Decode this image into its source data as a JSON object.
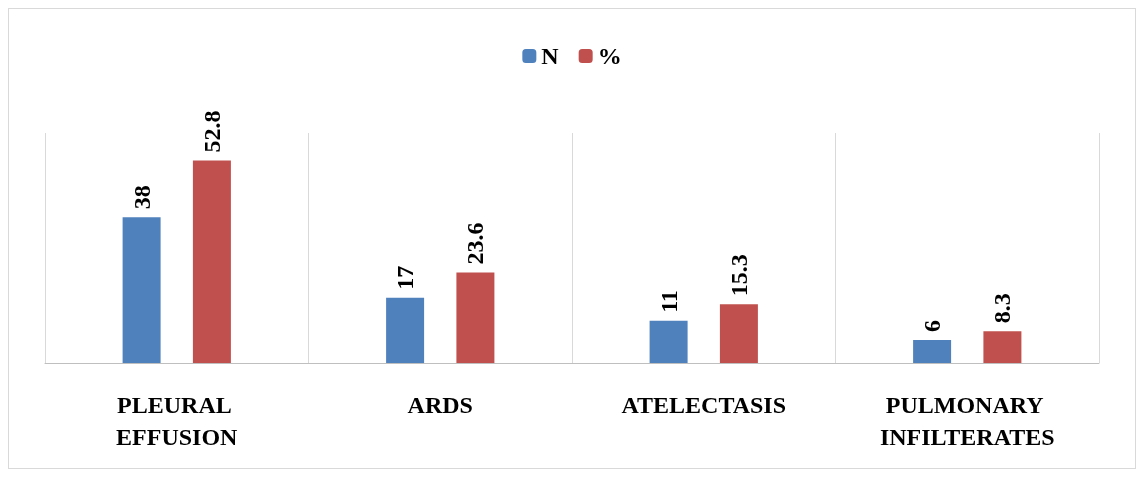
{
  "chart_data": {
    "type": "bar",
    "categories": [
      "PLEURAL EFFUSION",
      "ARDS",
      "ATELECTASIS",
      "PULMONARY INFILTERATES"
    ],
    "series": [
      {
        "name": "N",
        "color": "#4f81bd",
        "values": [
          38,
          17,
          11,
          6
        ]
      },
      {
        "name": "%",
        "color": "#c0504d",
        "values": [
          52.8,
          23.6,
          15.3,
          8.3
        ]
      }
    ],
    "data_labels": true,
    "grid": "x",
    "legend": "top"
  }
}
